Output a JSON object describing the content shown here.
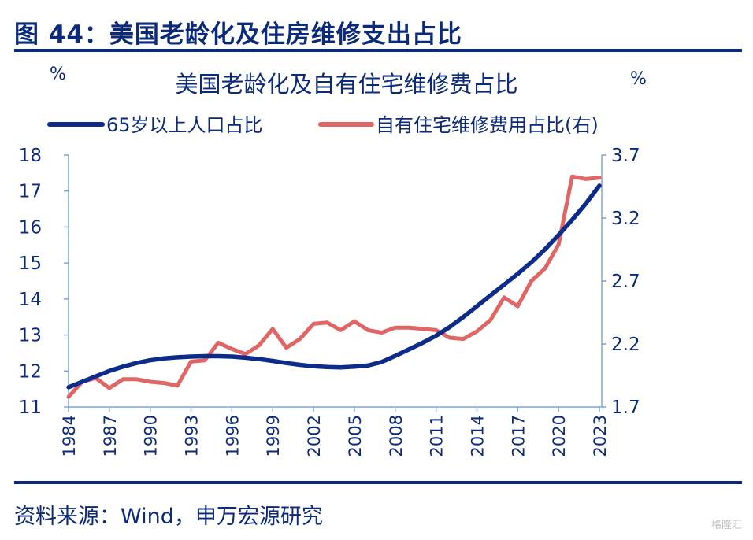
{
  "figure_title": "图 44：美国老龄化及住房维修支出占比",
  "source": "资料来源：Wind，申万宏源研究",
  "watermark": "格隆汇",
  "colors": {
    "navy": "#0c2a7a",
    "series1": "#0d2c8a",
    "series2": "#e06666",
    "axis": "#7fa7d4"
  },
  "chart_data": {
    "type": "line",
    "title": "美国老龄化及自有住宅维修费占比",
    "ylabel_left": "%",
    "ylabel_right": "%",
    "legend_position": "top",
    "grid": false,
    "ylim_left": [
      11,
      18
    ],
    "ylim_right": [
      1.7,
      3.7
    ],
    "yticks_left": [
      11,
      12,
      13,
      14,
      15,
      16,
      17,
      18
    ],
    "yticks_right": [
      "1.7",
      "2.2",
      "2.7",
      "3.2",
      "3.7"
    ],
    "xlim": [
      1984,
      2023
    ],
    "xticks": [
      "1984",
      "1987",
      "1990",
      "1993",
      "1996",
      "1999",
      "2002",
      "2005",
      "2008",
      "2011",
      "2014",
      "2017",
      "2020",
      "2023"
    ],
    "series": [
      {
        "name": "65岁以上人口占比",
        "axis": "left",
        "x": [
          1984,
          1985,
          1986,
          1987,
          1988,
          1989,
          1990,
          1991,
          1992,
          1993,
          1994,
          1995,
          1996,
          1997,
          1998,
          1999,
          2000,
          2001,
          2002,
          2003,
          2004,
          2005,
          2006,
          2007,
          2008,
          2009,
          2010,
          2011,
          2012,
          2013,
          2014,
          2015,
          2016,
          2017,
          2018,
          2019,
          2020,
          2021,
          2022,
          2023
        ],
        "values": [
          11.55,
          11.7,
          11.85,
          12.0,
          12.12,
          12.22,
          12.3,
          12.35,
          12.38,
          12.4,
          12.41,
          12.41,
          12.4,
          12.37,
          12.33,
          12.28,
          12.22,
          12.17,
          12.13,
          12.11,
          12.1,
          12.12,
          12.15,
          12.25,
          12.42,
          12.6,
          12.78,
          12.98,
          13.22,
          13.5,
          13.8,
          14.1,
          14.4,
          14.7,
          15.02,
          15.38,
          15.78,
          16.2,
          16.65,
          17.15
        ]
      },
      {
        "name": "自有住宅维修费用占比(右)",
        "axis": "right",
        "x": [
          1984,
          1985,
          1986,
          1987,
          1988,
          1989,
          1990,
          1991,
          1992,
          1993,
          1994,
          1995,
          1996,
          1997,
          1998,
          1999,
          2000,
          2001,
          2002,
          2003,
          2004,
          2005,
          2006,
          2007,
          2008,
          2009,
          2010,
          2011,
          2012,
          2013,
          2014,
          2015,
          2016,
          2017,
          2018,
          2019,
          2020,
          2021,
          2022,
          2023
        ],
        "values": [
          1.78,
          1.9,
          1.93,
          1.85,
          1.92,
          1.92,
          1.9,
          1.89,
          1.87,
          2.06,
          2.07,
          2.21,
          2.16,
          2.12,
          2.19,
          2.32,
          2.17,
          2.24,
          2.36,
          2.37,
          2.31,
          2.38,
          2.31,
          2.29,
          2.33,
          2.33,
          2.32,
          2.31,
          2.25,
          2.24,
          2.3,
          2.39,
          2.57,
          2.5,
          2.7,
          2.8,
          2.99,
          3.53,
          3.51,
          3.52
        ]
      }
    ]
  }
}
